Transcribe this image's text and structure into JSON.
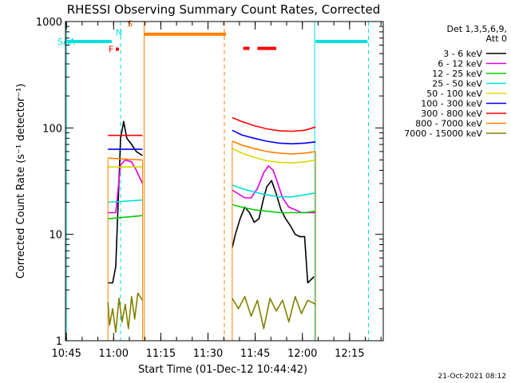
{
  "chart_data": {
    "type": "line",
    "title": "RHESSI Observing Summary Count Rates, Corrected",
    "xlabel": "Start Time (01-Dec-12 10:44:42)",
    "ylabel": "Corrected Count Rate (s⁻¹ detector⁻¹)",
    "yscale": "log",
    "ylim": [
      1,
      1000
    ],
    "xlim_minutes_since_10_44_42": [
      0,
      101
    ],
    "y_ticks": [
      "1",
      "10",
      "100",
      "1000"
    ],
    "x_ticks": [
      {
        "label": "10:45",
        "t": 0.3
      },
      {
        "label": "11:00",
        "t": 15.3
      },
      {
        "label": "11:15",
        "t": 30.3
      },
      {
        "label": "11:30",
        "t": 45.3
      },
      {
        "label": "11:45",
        "t": 60.3
      },
      {
        "label": "12:00",
        "t": 75.3
      },
      {
        "label": "12:15",
        "t": 90.3
      }
    ],
    "legend_header": [
      "Det 1,3,5,6,9,",
      "Att 0"
    ],
    "legend_placement": "right",
    "timestamp": "21-Oct-2021 08:12",
    "series": [
      {
        "name": "3 - 6 keV",
        "color": "#000000",
        "segments": [
          [
            [
              13.5,
              3.5
            ],
            [
              15,
              3.5
            ],
            [
              16,
              5
            ],
            [
              17.5,
              80
            ],
            [
              18.5,
              115
            ],
            [
              19.5,
              80
            ],
            [
              21,
              70
            ],
            [
              22.5,
              60
            ],
            [
              24.5,
              55
            ]
          ],
          [
            [
              53,
              7.5
            ],
            [
              54,
              10
            ],
            [
              55.5,
              14
            ],
            [
              57,
              18
            ],
            [
              58.5,
              16
            ],
            [
              60,
              13
            ],
            [
              61.5,
              14
            ],
            [
              63,
              22
            ],
            [
              64,
              28
            ],
            [
              65.5,
              32
            ],
            [
              67,
              24
            ],
            [
              68.5,
              17
            ],
            [
              70,
              14
            ],
            [
              71.5,
              12
            ],
            [
              73,
              10
            ],
            [
              74.5,
              9.5
            ],
            [
              76,
              9.5
            ],
            [
              77,
              3.5
            ],
            [
              79,
              4
            ]
          ]
        ]
      },
      {
        "name": "6 - 12 keV",
        "color": "#e000e0",
        "segments": [
          [
            [
              13.5,
              16
            ],
            [
              16,
              16
            ],
            [
              17.5,
              45
            ],
            [
              19,
              50
            ],
            [
              21,
              48
            ],
            [
              22.5,
              40
            ],
            [
              24.5,
              30
            ]
          ],
          [
            [
              53,
              26
            ],
            [
              55,
              24
            ],
            [
              57,
              22
            ],
            [
              59,
              22
            ],
            [
              61,
              27
            ],
            [
              63,
              38
            ],
            [
              64.5,
              44
            ],
            [
              66,
              40
            ],
            [
              67.5,
              30
            ],
            [
              69,
              22
            ],
            [
              71,
              18
            ],
            [
              73,
              17
            ],
            [
              75,
              16
            ],
            [
              77,
              16
            ],
            [
              79.5,
              16
            ]
          ]
        ]
      },
      {
        "name": "12 - 25 keV",
        "color": "#00cc00",
        "segments": [
          [
            [
              13.5,
              14
            ],
            [
              24.5,
              15
            ]
          ],
          [
            [
              53,
              19
            ],
            [
              56,
              18
            ],
            [
              60,
              17
            ],
            [
              64,
              16.5
            ],
            [
              68,
              16
            ],
            [
              72,
              16
            ],
            [
              76,
              16
            ],
            [
              79.5,
              16.5
            ]
          ]
        ]
      },
      {
        "name": "25 - 50 keV",
        "color": "#00e0e0",
        "segments": [
          [
            [
              13.5,
              20
            ],
            [
              24.5,
              21
            ]
          ],
          [
            [
              53,
              29
            ],
            [
              56,
              27
            ],
            [
              60,
              25
            ],
            [
              64,
              23.5
            ],
            [
              68,
              22.5
            ],
            [
              72,
              22.5
            ],
            [
              76,
              23.5
            ],
            [
              79.5,
              24.5
            ]
          ]
        ]
      },
      {
        "name": "50 - 100 keV",
        "color": "#d8d800",
        "segments": [
          [
            [
              13.5,
              43
            ],
            [
              24.5,
              43
            ]
          ],
          [
            [
              53,
              64
            ],
            [
              56,
              58
            ],
            [
              60,
              53
            ],
            [
              64,
              49
            ],
            [
              68,
              47.5
            ],
            [
              72,
              47
            ],
            [
              76,
              48
            ],
            [
              79.5,
              50
            ]
          ]
        ]
      },
      {
        "name": "100 - 300 keV",
        "color": "#0000ff",
        "segments": [
          [
            [
              13.5,
              63
            ],
            [
              24.5,
              63
            ]
          ],
          [
            [
              53,
              95
            ],
            [
              56,
              86
            ],
            [
              60,
              80
            ],
            [
              64,
              75
            ],
            [
              68,
              72
            ],
            [
              72,
              71
            ],
            [
              76,
              72
            ],
            [
              79.5,
              74
            ]
          ]
        ]
      },
      {
        "name": "300 - 800 keV",
        "color": "#ff0000",
        "segments": [
          [
            [
              13.5,
              85
            ],
            [
              24.5,
              85
            ]
          ],
          [
            [
              53,
              125
            ],
            [
              56,
              115
            ],
            [
              60,
              105
            ],
            [
              64,
              98
            ],
            [
              68,
              94
            ],
            [
              72,
              93
            ],
            [
              76,
              95
            ],
            [
              79.5,
              102
            ]
          ]
        ]
      },
      {
        "name": "800 - 7000 keV",
        "color": "#ff8000",
        "segments": [
          [
            [
              13.5,
              52
            ],
            [
              24.5,
              50
            ]
          ],
          [
            [
              53,
              75
            ],
            [
              56,
              69
            ],
            [
              60,
              64
            ],
            [
              64,
              60
            ],
            [
              68,
              58
            ],
            [
              72,
              57
            ],
            [
              76,
              58
            ],
            [
              79.5,
              60
            ]
          ]
        ]
      },
      {
        "name": "7000 - 15000 keV",
        "color": "#808000",
        "segments": [
          [
            [
              13.5,
              2.3
            ],
            [
              14,
              1.4
            ],
            [
              15,
              2.0
            ],
            [
              16,
              1.2
            ],
            [
              17,
              2.5
            ],
            [
              18,
              1.5
            ],
            [
              19,
              2.2
            ],
            [
              20,
              1.3
            ],
            [
              21,
              2.6
            ],
            [
              22,
              1.6
            ],
            [
              23,
              2.8
            ],
            [
              24.5,
              2.4
            ]
          ],
          [
            [
              53,
              2.5
            ],
            [
              55,
              2.0
            ],
            [
              57,
              2.6
            ],
            [
              59,
              1.7
            ],
            [
              61,
              2.4
            ],
            [
              63,
              1.3
            ],
            [
              65,
              2.5
            ],
            [
              67,
              1.9
            ],
            [
              69,
              2.4
            ],
            [
              71,
              1.5
            ],
            [
              73,
              2.6
            ],
            [
              75,
              1.8
            ],
            [
              77,
              2.4
            ],
            [
              79.5,
              2.2
            ]
          ]
        ]
      }
    ],
    "state_bars": [
      {
        "label": "SAA",
        "color": "#00e0e0",
        "level": 650,
        "spans": [
          [
            0.3,
            14.7
          ],
          [
            79.5,
            96
          ]
        ]
      },
      {
        "label": "N",
        "color": "#00e0e0",
        "label_only": true,
        "t": 17,
        "level": 790
      },
      {
        "label": "F",
        "color": "#ff0000",
        "level": 550,
        "spans": [
          [
            16,
            17
          ]
        ],
        "label_t": 14.5
      },
      {
        "label": "S",
        "color": "#ff8000",
        "level": 760,
        "spans": [
          [
            25,
            51
          ]
        ],
        "label_t": 20.5,
        "label_level": 960
      },
      {
        "label": "",
        "color": "#ff0000",
        "level": 560,
        "spans": [
          [
            56.5,
            58.5
          ],
          [
            61,
            67
          ]
        ]
      }
    ],
    "vlines": [
      {
        "t": 0.3,
        "color": "#00e0e0",
        "dashed": false
      },
      {
        "t": 17.5,
        "color": "#00e0e0",
        "dashed": true
      },
      {
        "t": 25,
        "color": "#ff8000",
        "dashed": false
      },
      {
        "t": 50.5,
        "color": "#ff8000",
        "dashed": true
      },
      {
        "t": 79.2,
        "color": "#00e0e0",
        "dashed": false
      },
      {
        "t": 96.3,
        "color": "#00e0e0",
        "dashed": true
      }
    ],
    "grid": false
  }
}
